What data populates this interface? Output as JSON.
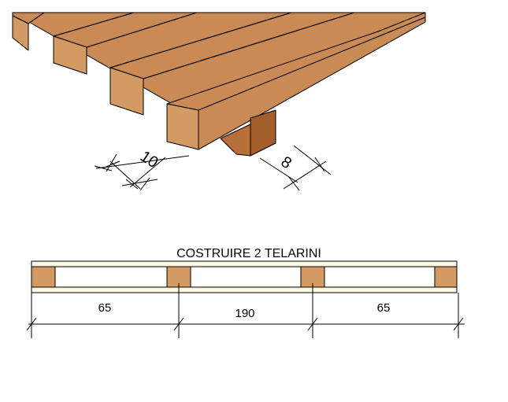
{
  "top_view": {
    "dim_board_width": "10",
    "dim_block_width": "8"
  },
  "section": {
    "title": "COSTRUIRE 2 TELARINI",
    "dim_left": "65",
    "dim_middle": "190",
    "dim_right": "65"
  },
  "colors": {
    "wood_top": "#c98a55",
    "wood_front": "#d49a63",
    "wood_side": "#b37340",
    "block_front": "#b86f38",
    "block_side": "#a25f2c",
    "board_light": "#fdf6e3",
    "line": "#000000"
  }
}
